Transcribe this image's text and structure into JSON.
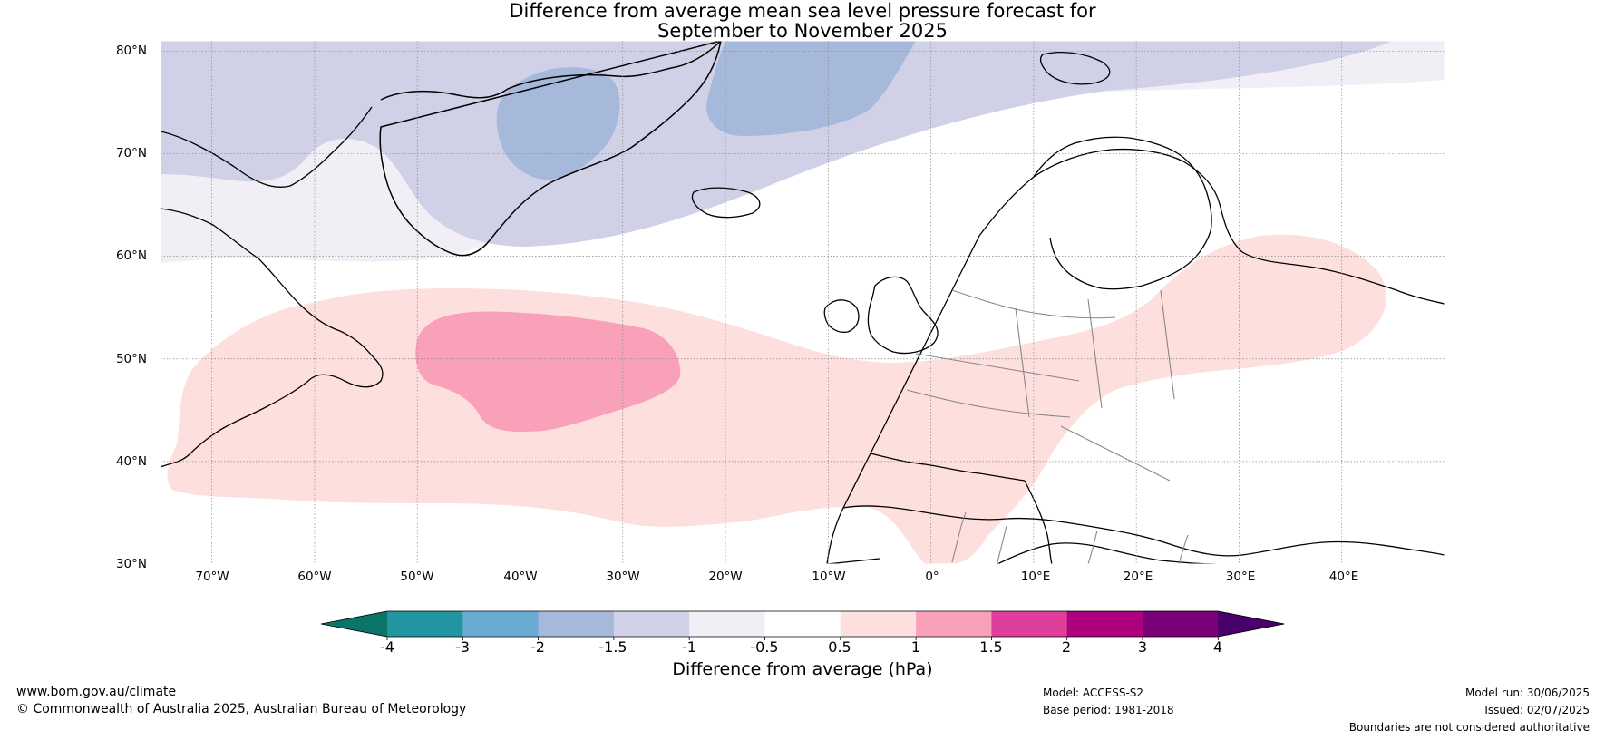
{
  "title": {
    "line1": "Difference from average mean sea level pressure forecast for",
    "line2": "September to November 2025"
  },
  "map": {
    "lat_labels": [
      "80°N",
      "70°N",
      "60°N",
      "50°N",
      "40°N",
      "30°N"
    ],
    "lon_labels": [
      "70°W",
      "60°W",
      "50°W",
      "40°W",
      "30°W",
      "20°W",
      "10°W",
      "0°",
      "10°E",
      "20°E",
      "30°E",
      "40°E"
    ],
    "extent": {
      "lon": [
        -75,
        50
      ],
      "lat": [
        30,
        81
      ]
    },
    "gridlines": true
  },
  "colorbar": {
    "title": "Difference from average (hPa)",
    "ticks": [
      "-4",
      "-3",
      "-2",
      "-1.5",
      "-1",
      "-0.5",
      "0.5",
      "1",
      "1.5",
      "2",
      "3",
      "4"
    ],
    "colors": [
      "#0b7569",
      "#2196a0",
      "#6aabd3",
      "#a6b9da",
      "#d0d1e6",
      "#f1eef6",
      "#ffffff",
      "#fde0dd",
      "#faa1ba",
      "#df3e9d",
      "#ad017e",
      "#7a0177",
      "#49006a"
    ]
  },
  "footer": {
    "website": "www.bom.gov.au/climate",
    "copyright": "© Commonwealth of Australia 2025, Australian Bureau of Meteorology",
    "model": "Model: ACCESS-S2",
    "base_period": "Base period: 1981-2018",
    "model_run": "Model run: 30/06/2025",
    "issued": "Issued: 02/07/2025",
    "disclaimer": "Boundaries are not considered authoritative"
  }
}
